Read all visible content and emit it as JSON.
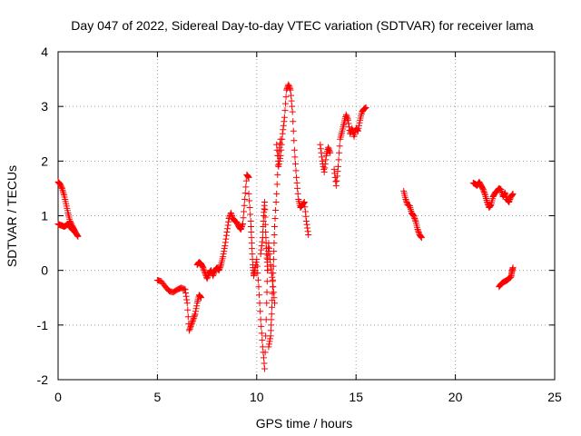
{
  "chart_data": {
    "type": "scatter",
    "title": "Day 047 of 2022, Sidereal Day-to-day VTEC variation (SDTVAR) for receiver lama",
    "xlabel": "GPS time / hours",
    "ylabel": "SDTVAR / TECUs",
    "xlim": [
      0,
      25
    ],
    "ylim": [
      -2,
      4
    ],
    "x_ticks": [
      0,
      5,
      10,
      15,
      20,
      25
    ],
    "y_ticks": [
      -2,
      -1,
      0,
      1,
      2,
      3,
      4
    ],
    "x_tick_labels": [
      "0",
      "5",
      "10",
      "15",
      "20",
      "25"
    ],
    "y_tick_labels": [
      "-2",
      "-1",
      "0",
      "1",
      "2",
      "3",
      "4"
    ],
    "grid": true,
    "marker": "+",
    "color": "#ff0000",
    "segments": [
      {
        "x": [
          0.0,
          0.1,
          0.2,
          0.3,
          0.4,
          0.5,
          0.6,
          0.7,
          0.8,
          0.9,
          1.0
        ],
        "y": [
          1.62,
          1.58,
          1.5,
          1.38,
          1.22,
          1.05,
          0.9,
          0.82,
          0.75,
          0.68,
          0.62
        ]
      },
      {
        "x": [
          0.0,
          0.1,
          0.2,
          0.3,
          0.4,
          0.5,
          0.6,
          0.7,
          0.8
        ],
        "y": [
          0.85,
          0.83,
          0.82,
          0.8,
          0.82,
          0.85,
          0.8,
          0.75,
          0.72
        ]
      },
      {
        "x": [
          5.0,
          5.2,
          5.4,
          5.6,
          5.8,
          6.0,
          6.2,
          6.4,
          6.5,
          6.6,
          6.7,
          6.8,
          6.9,
          7.0,
          7.1,
          7.2
        ],
        "y": [
          -0.18,
          -0.2,
          -0.3,
          -0.38,
          -0.4,
          -0.35,
          -0.32,
          -0.35,
          -0.6,
          -1.1,
          -1.0,
          -0.9,
          -0.8,
          -0.6,
          -0.45,
          -0.5
        ]
      },
      {
        "x": [
          7.0,
          7.1,
          7.2,
          7.3,
          7.4,
          7.5,
          7.6,
          7.7,
          7.8,
          7.9,
          8.0,
          8.1,
          8.2,
          8.3,
          8.4,
          8.5,
          8.6,
          8.7,
          8.8,
          8.9,
          9.0,
          9.1,
          9.2,
          9.3,
          9.4,
          9.5,
          9.6
        ],
        "y": [
          0.1,
          0.15,
          0.12,
          0.05,
          -0.05,
          -0.15,
          -0.05,
          0.0,
          -0.1,
          0.0,
          0.05,
          0.0,
          0.1,
          0.25,
          0.45,
          0.7,
          0.95,
          1.05,
          0.95,
          0.9,
          0.88,
          0.8,
          0.75,
          0.85,
          1.3,
          1.75,
          1.7
        ]
      },
      {
        "x": [
          9.6,
          9.7,
          9.75,
          9.8,
          9.85,
          9.9,
          10.0,
          10.1,
          10.2,
          10.3,
          10.4,
          10.5,
          10.55,
          10.6,
          10.7,
          10.8,
          10.9
        ],
        "y": [
          1.4,
          0.9,
          0.5,
          0.1,
          -0.1,
          0.0,
          0.2,
          -0.3,
          -0.9,
          -1.4,
          -1.8,
          -0.6,
          0.2,
          0.5,
          0.1,
          -0.2,
          -0.6
        ]
      },
      {
        "x": [
          10.2,
          10.3,
          10.35,
          10.4,
          10.45,
          10.5,
          10.55
        ],
        "y": [
          0.3,
          0.6,
          1.0,
          1.25,
          0.7,
          0.3,
          0.0
        ]
      },
      {
        "x": [
          10.6,
          10.7,
          10.75,
          10.8,
          10.85,
          10.9,
          11.0,
          11.1,
          11.2
        ],
        "y": [
          -1.4,
          -1.2,
          -0.8,
          -0.3,
          0.2,
          0.8,
          1.4,
          2.1,
          2.4
        ]
      },
      {
        "x": [
          11.0,
          11.1,
          11.2,
          11.3,
          11.4,
          11.5,
          11.6,
          11.7,
          11.8,
          11.9,
          12.0,
          12.1,
          12.2,
          12.3,
          12.4,
          12.5,
          12.6
        ],
        "y": [
          2.3,
          1.9,
          2.1,
          2.5,
          2.8,
          3.3,
          3.4,
          3.3,
          2.9,
          2.2,
          1.7,
          1.3,
          1.15,
          1.2,
          1.25,
          0.9,
          0.65
        ]
      },
      {
        "x": [
          13.2,
          13.3,
          13.4,
          13.5,
          13.6,
          13.7
        ],
        "y": [
          2.3,
          2.0,
          1.8,
          2.1,
          2.25,
          2.15
        ]
      },
      {
        "x": [
          13.9,
          14.0,
          14.1,
          14.2,
          14.3,
          14.4,
          14.5,
          14.6,
          14.7,
          14.8,
          14.9,
          15.0,
          15.1,
          15.2,
          15.3,
          15.4,
          15.5
        ],
        "y": [
          1.85,
          1.55,
          1.9,
          2.4,
          2.55,
          2.7,
          2.85,
          2.75,
          2.5,
          2.6,
          2.45,
          2.6,
          2.55,
          2.75,
          2.9,
          2.95,
          2.98
        ]
      },
      {
        "x": [
          17.4,
          17.5,
          17.6,
          17.7,
          17.8,
          17.9,
          18.0,
          18.1,
          18.2,
          18.3
        ],
        "y": [
          1.45,
          1.3,
          1.2,
          1.18,
          1.05,
          1.0,
          0.9,
          0.75,
          0.65,
          0.6
        ]
      },
      {
        "x": [
          20.9,
          21.0,
          21.1,
          21.2,
          21.3,
          21.4,
          21.5,
          21.6,
          21.7,
          21.8,
          21.9,
          22.0,
          22.1,
          22.2,
          22.3,
          22.4,
          22.5,
          22.6,
          22.7,
          22.8,
          22.9
        ],
        "y": [
          1.6,
          1.58,
          1.55,
          1.62,
          1.55,
          1.48,
          1.38,
          1.25,
          1.15,
          1.2,
          1.35,
          1.42,
          1.45,
          1.5,
          1.48,
          1.35,
          1.42,
          1.3,
          1.25,
          1.35,
          1.4
        ]
      },
      {
        "x": [
          22.2,
          22.3,
          22.4,
          22.5,
          22.6,
          22.7,
          22.8,
          22.85,
          22.9
        ],
        "y": [
          -0.3,
          -0.25,
          -0.22,
          -0.2,
          -0.18,
          -0.15,
          -0.12,
          -0.02,
          0.05
        ]
      }
    ]
  }
}
